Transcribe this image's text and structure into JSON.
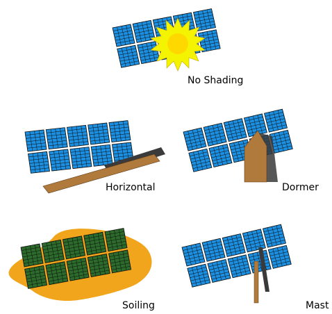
{
  "colors": {
    "panel_fill": "#1c8fe0",
    "panel_grid": "#000000",
    "sun_ray": "#f2f200",
    "sun_core": "#ffd400",
    "wood": "#b07a3c",
    "dirt": "#f0a51c",
    "soil_green": "#2a6a2a",
    "shadow": "#3a3a3a"
  },
  "scenarios": [
    {
      "id": "no-shading",
      "label": "No Shading"
    },
    {
      "id": "horizontal",
      "label": "Horizontal"
    },
    {
      "id": "dormer",
      "label": "Dormer"
    },
    {
      "id": "soiling",
      "label": "Soiling"
    },
    {
      "id": "mast",
      "label": "Mast"
    }
  ]
}
